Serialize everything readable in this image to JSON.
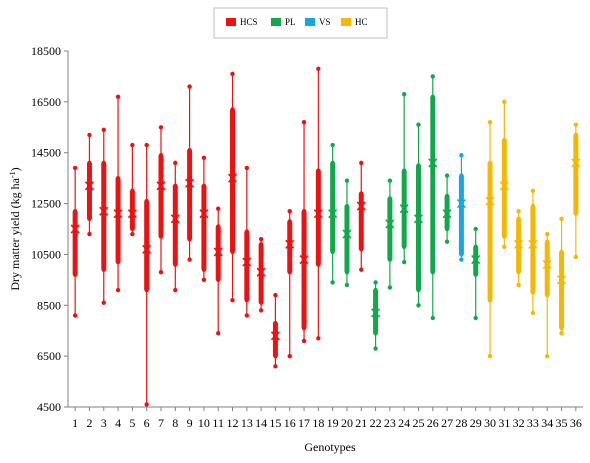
{
  "chart_data": {
    "type": "box",
    "xlabel": "Genotypes",
    "ylabel": "Dry matter yield (kg ha",
    "ylabel_sup": "-1",
    "ylabel_end": ")",
    "ylim": [
      4500,
      18500
    ],
    "yticks": [
      4500,
      6500,
      8500,
      10500,
      12500,
      14500,
      16500,
      18500
    ],
    "grid": false,
    "legend_position": "top-center",
    "groups": [
      {
        "name": "HCS",
        "color": "#ee1111"
      },
      {
        "name": "PL",
        "color": "#11a84c"
      },
      {
        "name": "VS",
        "color": "#15a7e0"
      },
      {
        "name": "HC",
        "color": "#f5b800"
      }
    ],
    "genotypes": [
      {
        "label": "1",
        "group": "HCS",
        "min": 8100,
        "q1": 9700,
        "median": 11200,
        "mean": 11500,
        "q3": 12200,
        "max": 13900
      },
      {
        "label": "2",
        "group": "HCS",
        "min": 11300,
        "q1": 11900,
        "median": 13100,
        "mean": 13200,
        "q3": 14100,
        "max": 15200
      },
      {
        "label": "3",
        "group": "HCS",
        "min": 8600,
        "q1": 9900,
        "median": 12000,
        "mean": 12200,
        "q3": 14100,
        "max": 15400
      },
      {
        "label": "4",
        "group": "HCS",
        "min": 9100,
        "q1": 10200,
        "median": 12000,
        "mean": 12100,
        "q3": 13500,
        "max": 16700
      },
      {
        "label": "5",
        "group": "HCS",
        "min": 11300,
        "q1": 11500,
        "median": 12000,
        "mean": 12100,
        "q3": 13000,
        "max": 14800
      },
      {
        "label": "6",
        "group": "HCS",
        "min": 4600,
        "q1": 9100,
        "median": 10800,
        "mean": 10700,
        "q3": 12600,
        "max": 14800
      },
      {
        "label": "7",
        "group": "HCS",
        "min": 9800,
        "q1": 11200,
        "median": 13100,
        "mean": 13200,
        "q3": 14400,
        "max": 15500
      },
      {
        "label": "8",
        "group": "HCS",
        "min": 9100,
        "q1": 10100,
        "median": 11900,
        "mean": 11900,
        "q3": 13200,
        "max": 14100
      },
      {
        "label": "9",
        "group": "HCS",
        "min": 10300,
        "q1": 11100,
        "median": 13300,
        "mean": 13300,
        "q3": 14600,
        "max": 17100
      },
      {
        "label": "10",
        "group": "HCS",
        "min": 9500,
        "q1": 9900,
        "median": 12000,
        "mean": 12100,
        "q3": 13200,
        "max": 14300
      },
      {
        "label": "11",
        "group": "HCS",
        "min": 7400,
        "q1": 9500,
        "median": 10600,
        "mean": 10600,
        "q3": 11600,
        "max": 12300
      },
      {
        "label": "12",
        "group": "HCS",
        "min": 8700,
        "q1": 10600,
        "median": 13600,
        "mean": 13500,
        "q3": 16200,
        "max": 17600
      },
      {
        "label": "13",
        "group": "HCS",
        "min": 8100,
        "q1": 8700,
        "median": 10200,
        "mean": 10200,
        "q3": 11400,
        "max": 13900
      },
      {
        "label": "14",
        "group": "HCS",
        "min": 8300,
        "q1": 8600,
        "median": 9800,
        "mean": 9800,
        "q3": 10900,
        "max": 11100
      },
      {
        "label": "15",
        "group": "HCS",
        "min": 6100,
        "q1": 6500,
        "median": 7200,
        "mean": 7300,
        "q3": 7800,
        "max": 8900
      },
      {
        "label": "16",
        "group": "HCS",
        "min": 6500,
        "q1": 9800,
        "median": 10900,
        "mean": 10900,
        "q3": 11800,
        "max": 12200
      },
      {
        "label": "17",
        "group": "HCS",
        "min": 7100,
        "q1": 7600,
        "median": 10300,
        "mean": 10300,
        "q3": 12200,
        "max": 15700
      },
      {
        "label": "18",
        "group": "HCS",
        "min": 7200,
        "q1": 10100,
        "median": 12100,
        "mean": 12100,
        "q3": 13800,
        "max": 17800
      },
      {
        "label": "19",
        "group": "PL",
        "min": 9400,
        "q1": 10600,
        "median": 12100,
        "mean": 12100,
        "q3": 14100,
        "max": 14800
      },
      {
        "label": "20",
        "group": "PL",
        "min": 9300,
        "q1": 9800,
        "median": 11400,
        "mean": 11300,
        "q3": 12400,
        "max": 13400
      },
      {
        "label": "21",
        "group": "HCS",
        "min": 9900,
        "q1": 10700,
        "median": 12200,
        "mean": 12400,
        "q3": 12900,
        "max": 14100
      },
      {
        "label": "22",
        "group": "PL",
        "min": 6800,
        "q1": 7400,
        "median": 8200,
        "mean": 8200,
        "q3": 9100,
        "max": 9400
      },
      {
        "label": "23",
        "group": "PL",
        "min": 9200,
        "q1": 10300,
        "median": 11700,
        "mean": 11700,
        "q3": 12700,
        "max": 13400
      },
      {
        "label": "24",
        "group": "PL",
        "min": 10200,
        "q1": 10800,
        "median": 12400,
        "mean": 12300,
        "q3": 13800,
        "max": 16800
      },
      {
        "label": "25",
        "group": "PL",
        "min": 8500,
        "q1": 9100,
        "median": 11800,
        "mean": 11900,
        "q3": 14000,
        "max": 15600
      },
      {
        "label": "26",
        "group": "PL",
        "min": 8000,
        "q1": 9800,
        "median": 14100,
        "mean": 14100,
        "q3": 16700,
        "max": 17500
      },
      {
        "label": "27",
        "group": "PL",
        "min": 11000,
        "q1": 11500,
        "median": 12100,
        "mean": 12100,
        "q3": 12800,
        "max": 13600
      },
      {
        "label": "28",
        "group": "VS",
        "min": 10300,
        "q1": 10500,
        "median": 12400,
        "mean": 12500,
        "q3": 13600,
        "max": 14400
      },
      {
        "label": "29",
        "group": "PL",
        "min": 8000,
        "q1": 9700,
        "median": 10300,
        "mean": 10300,
        "q3": 10800,
        "max": 11500
      },
      {
        "label": "30",
        "group": "HC",
        "min": 6500,
        "q1": 8700,
        "median": 12500,
        "mean": 12600,
        "q3": 14100,
        "max": 15700
      },
      {
        "label": "31",
        "group": "HC",
        "min": 10800,
        "q1": 11200,
        "median": 13200,
        "mean": 13200,
        "q3": 15000,
        "max": 16500
      },
      {
        "label": "32",
        "group": "HC",
        "min": 9300,
        "q1": 9800,
        "median": 10900,
        "mean": 10900,
        "q3": 11900,
        "max": 12200
      },
      {
        "label": "33",
        "group": "HC",
        "min": 8200,
        "q1": 9000,
        "median": 10800,
        "mean": 10900,
        "q3": 12400,
        "max": 13000
      },
      {
        "label": "34",
        "group": "HC",
        "min": 6500,
        "q1": 8900,
        "median": 10000,
        "mean": 10100,
        "q3": 11000,
        "max": 11300
      },
      {
        "label": "35",
        "group": "HC",
        "min": 7400,
        "q1": 7600,
        "median": 9500,
        "mean": 9500,
        "q3": 10600,
        "max": 11900
      },
      {
        "label": "36",
        "group": "HC",
        "min": 10400,
        "q1": 12100,
        "median": 14100,
        "mean": 14100,
        "q3": 15200,
        "max": 15600
      }
    ]
  }
}
